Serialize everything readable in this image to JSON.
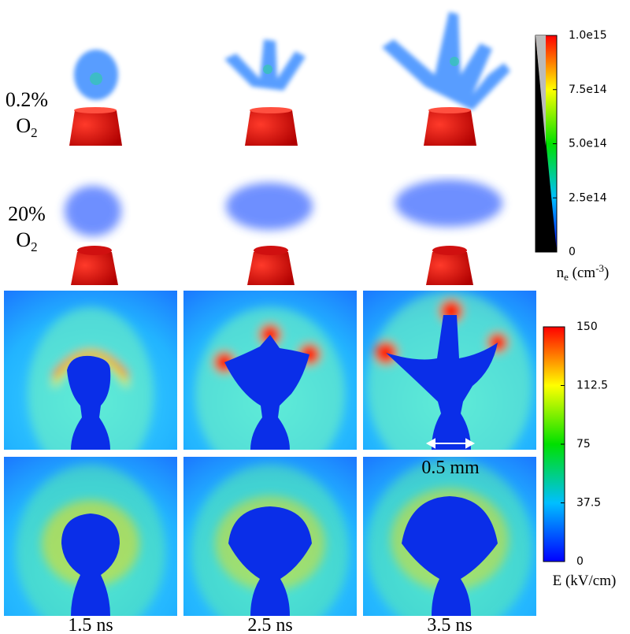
{
  "row_labels": [
    {
      "text": "0.2%",
      "species": "O",
      "subscript": "2"
    },
    {
      "text": "20%",
      "species": "O",
      "subscript": "2"
    }
  ],
  "column_labels": [
    "1.5 ns",
    "2.5 ns",
    "3.5 ns"
  ],
  "density_colorbar": {
    "label": [
      "n",
      "e",
      " (cm",
      "-3",
      ")"
    ],
    "ticks": [
      0,
      {
        "value": 250000000000000.0,
        "label": "2.5e14"
      },
      {
        "value": 500000000000000.0,
        "label": "5.0e14"
      },
      {
        "value": 750000000000000.0,
        "label": "7.5e14"
      },
      {
        "value": 1000000000000000.0,
        "label": "1.0e15"
      }
    ]
  },
  "field_colorbar": {
    "label": "E (kV/cm)",
    "ticks": [
      0,
      37.5,
      75,
      112.5,
      150
    ]
  },
  "scale_bar": "0.5 mm"
}
